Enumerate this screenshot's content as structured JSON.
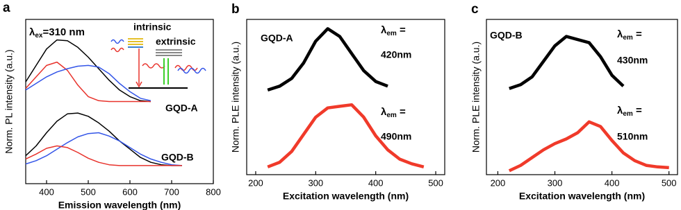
{
  "chart_data": [
    {
      "type": "line",
      "panel_label": "a",
      "xlabel": "Emission wavelength (nm)",
      "ylabel": "Norm. PL intensity (a.u.)",
      "xlim": [
        350,
        800
      ],
      "ylim": [
        0,
        10
      ],
      "xticks": [
        400,
        500,
        600,
        700,
        800
      ],
      "x": [
        350,
        375,
        400,
        425,
        450,
        475,
        500,
        525,
        550,
        575,
        600,
        625,
        650,
        675,
        700,
        725
      ],
      "series": [
        {
          "color": "#000000",
          "values": [
            6.2,
            7.2,
            8.2,
            8.75,
            8.7,
            8.3,
            7.7,
            7.0,
            6.3,
            5.7,
            5.3,
            5.05,
            5.0,
            null,
            null,
            null
          ]
        },
        {
          "color": "#e8322b",
          "values": [
            5.8,
            6.5,
            7.2,
            7.4,
            6.9,
            6.0,
            5.3,
            5.05,
            5.0,
            5.0,
            5.0,
            5.0,
            5.0,
            null,
            null,
            null
          ]
        },
        {
          "color": "#3355e8",
          "values": [
            5.7,
            6.1,
            6.5,
            6.8,
            7.0,
            7.15,
            7.2,
            7.1,
            6.7,
            6.1,
            5.6,
            5.2,
            5.05,
            null,
            null,
            null
          ]
        },
        {
          "color": "#000000",
          "values": [
            1.7,
            2.3,
            3.1,
            3.8,
            4.25,
            4.3,
            4.1,
            3.7,
            3.2,
            2.6,
            2.1,
            1.6,
            1.3,
            1.15,
            1.1,
            1.1
          ]
        },
        {
          "color": "#3355e8",
          "values": [
            1.2,
            1.4,
            1.7,
            2.1,
            2.5,
            2.85,
            3.05,
            3.1,
            2.9,
            2.6,
            2.2,
            1.8,
            1.5,
            1.3,
            1.15,
            1.1
          ]
        },
        {
          "color": "#e8322b",
          "values": [
            1.5,
            1.8,
            2.15,
            2.3,
            2.2,
            1.9,
            1.55,
            1.3,
            1.15,
            1.1,
            1.1,
            1.1,
            1.1,
            1.1,
            1.1,
            1.1
          ]
        }
      ],
      "annotations": [
        {
          "main": "λ",
          "sub": "ex",
          "tail": "=310 nm"
        },
        {
          "text": "intrinsic"
        },
        {
          "text": "extrinsic"
        },
        {
          "text": "GQD-A"
        },
        {
          "text": "GQD-B"
        }
      ]
    },
    {
      "type": "line",
      "panel_label": "b",
      "xlabel": "Excitation wavelength (nm)",
      "ylabel": "Norm. PLE intensity (a.u.)",
      "xlim": [
        185,
        515
      ],
      "ylim": [
        0,
        10
      ],
      "xticks": [
        200,
        300,
        400,
        500
      ],
      "x": [
        220,
        240,
        260,
        280,
        300,
        320,
        340,
        360,
        380,
        400,
        420,
        440,
        460,
        480
      ],
      "series": [
        {
          "color": "#000000",
          "values": [
            5.45,
            5.7,
            6.2,
            7.2,
            8.6,
            9.4,
            8.9,
            7.8,
            6.7,
            6.0,
            5.7,
            null,
            null,
            null
          ]
        },
        {
          "color": "#f03a2a",
          "values": [
            0.5,
            0.8,
            1.5,
            2.6,
            3.7,
            4.3,
            4.4,
            4.5,
            3.7,
            2.5,
            1.6,
            1.0,
            0.7,
            0.5
          ]
        }
      ],
      "annotations": [
        {
          "text": "GQD-A"
        },
        {
          "main": "λ",
          "sub": "em",
          "tail": " ="
        },
        {
          "text": "420nm"
        },
        {
          "main": "λ",
          "sub": "em",
          "tail": " ="
        },
        {
          "text": "490nm"
        }
      ]
    },
    {
      "type": "line",
      "panel_label": "c",
      "xlabel": "Excitation wavelength (nm)",
      "ylabel": "Norm. PLE intensity (a.u.)",
      "xlim": [
        180,
        515
      ],
      "ylim": [
        0,
        10
      ],
      "xticks": [
        200,
        300,
        400,
        500
      ],
      "x": [
        220,
        240,
        260,
        280,
        300,
        320,
        340,
        360,
        380,
        400,
        420,
        440,
        460,
        480,
        500
      ],
      "series": [
        {
          "color": "#000000",
          "values": [
            5.55,
            5.8,
            6.3,
            7.3,
            8.3,
            8.9,
            8.7,
            8.5,
            7.6,
            6.4,
            5.7,
            null,
            null,
            null,
            null
          ]
        },
        {
          "color": "#f03a2a",
          "values": [
            0.25,
            0.6,
            1.1,
            1.6,
            2.0,
            2.3,
            2.7,
            3.4,
            3.1,
            2.2,
            1.4,
            0.9,
            0.6,
            0.5,
            0.45
          ]
        }
      ],
      "annotations": [
        {
          "text": "GQD-B"
        },
        {
          "main": "λ",
          "sub": "em",
          "tail": " ="
        },
        {
          "text": "430nm"
        },
        {
          "main": "λ",
          "sub": "em",
          "tail": " ="
        },
        {
          "text": "510nm"
        }
      ]
    }
  ]
}
